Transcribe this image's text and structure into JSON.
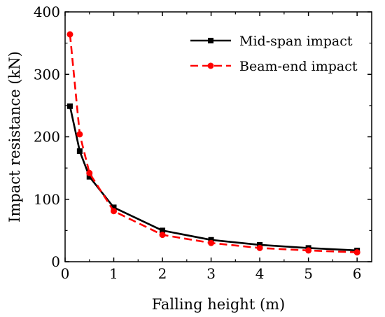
{
  "chart_data": {
    "type": "line",
    "xlabel": "Falling height (m)",
    "ylabel": "Impact resistance (kN)",
    "xlim": [
      0,
      6.3
    ],
    "ylim": [
      0,
      400
    ],
    "xticks": [
      0,
      1,
      2,
      3,
      4,
      5,
      6
    ],
    "yticks": [
      0,
      100,
      200,
      300,
      400
    ],
    "legend_position": "top-right",
    "grid": false,
    "series": [
      {
        "name": "Mid-span impact",
        "color": "#000000",
        "line_style": "solid",
        "marker": "square",
        "x": [
          0.1,
          0.3,
          0.5,
          1,
          2,
          3,
          4,
          5,
          6
        ],
        "y": [
          249,
          177,
          136,
          87,
          50,
          35,
          27,
          22,
          18
        ]
      },
      {
        "name": "Beam-end impact",
        "color": "#ff0000",
        "line_style": "dashed",
        "marker": "circle",
        "x": [
          0.1,
          0.3,
          0.5,
          1,
          2,
          3,
          4,
          5,
          6
        ],
        "y": [
          364,
          204,
          142,
          81,
          43,
          30,
          22,
          18,
          15
        ]
      }
    ]
  }
}
